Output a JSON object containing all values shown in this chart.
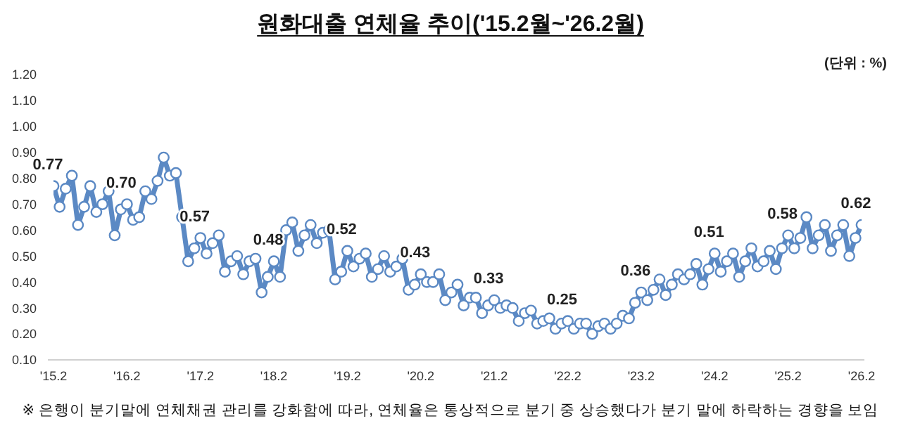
{
  "chart_data": {
    "type": "line",
    "title": "원화대출 연체율 추이('15.2월~'26.2월)",
    "annotations": [
      "(단위 : %)",
      "※ 은행이 분기말에 연체채권 관리를 강화함에 따라, 연체율은 통상적으로 분기 중 상승했다가 분기 말에 하락하는 경향을 보임"
    ],
    "categories": [
      "'15.2",
      null,
      null,
      null,
      null,
      null,
      null,
      null,
      null,
      null,
      null,
      null,
      "'16.2",
      null,
      null,
      null,
      null,
      null,
      null,
      null,
      null,
      null,
      null,
      null,
      "'17.2",
      null,
      null,
      null,
      null,
      null,
      null,
      null,
      null,
      null,
      null,
      null,
      "'18.2",
      null,
      null,
      null,
      null,
      null,
      null,
      null,
      null,
      null,
      null,
      null,
      "'19.2",
      null,
      null,
      null,
      null,
      null,
      null,
      null,
      null,
      null,
      null,
      null,
      "'20.2",
      null,
      null,
      null,
      null,
      null,
      null,
      null,
      null,
      null,
      null,
      null,
      "'21.2",
      null,
      null,
      null,
      null,
      null,
      null,
      null,
      null,
      null,
      null,
      null,
      "'22.2",
      null,
      null,
      null,
      null,
      null,
      null,
      null,
      null,
      null,
      null,
      null,
      "'23.2",
      null,
      null,
      null,
      null,
      null,
      null,
      null,
      null,
      null,
      null,
      null,
      "'24.2",
      null,
      null,
      null,
      null,
      null,
      null,
      null,
      null,
      null,
      null,
      null,
      "'25.2",
      null,
      null,
      null,
      null,
      null,
      null,
      null,
      null,
      null,
      null,
      null,
      "'26.2"
    ],
    "series": [
      {
        "color": "#5b89c4",
        "values": [
          0.77,
          0.69,
          0.76,
          0.81,
          0.62,
          0.69,
          0.77,
          0.67,
          0.7,
          0.75,
          0.58,
          0.68,
          0.7,
          0.64,
          0.65,
          0.75,
          0.72,
          0.79,
          0.88,
          0.81,
          0.82,
          0.65,
          0.48,
          0.53,
          0.57,
          0.51,
          0.55,
          0.58,
          0.44,
          0.48,
          0.5,
          0.43,
          0.48,
          0.49,
          0.36,
          0.42,
          0.48,
          0.42,
          0.6,
          0.63,
          0.52,
          0.58,
          0.62,
          0.55,
          0.59,
          0.6,
          0.41,
          0.44,
          0.52,
          0.46,
          0.49,
          0.51,
          0.42,
          0.45,
          0.5,
          0.44,
          0.46,
          0.49,
          0.37,
          0.39,
          0.43,
          0.4,
          0.4,
          0.43,
          0.33,
          0.36,
          0.39,
          0.31,
          0.34,
          0.34,
          0.28,
          0.31,
          0.33,
          0.3,
          0.31,
          0.3,
          0.25,
          0.28,
          0.29,
          0.24,
          0.25,
          0.26,
          0.22,
          0.24,
          0.25,
          0.22,
          0.24,
          0.24,
          0.2,
          0.23,
          0.24,
          0.22,
          0.24,
          0.27,
          0.26,
          0.32,
          0.36,
          0.33,
          0.37,
          0.41,
          0.35,
          0.39,
          0.43,
          0.41,
          0.43,
          0.47,
          0.39,
          0.45,
          0.51,
          0.44,
          0.48,
          0.51,
          0.42,
          0.48,
          0.53,
          0.46,
          0.48,
          0.52,
          0.45,
          0.53,
          0.58,
          0.53,
          0.57,
          0.65,
          0.53,
          0.58,
          0.62,
          0.52,
          0.58,
          0.62,
          0.5,
          0.57,
          0.62
        ],
        "value_labels": [
          "0.77",
          null,
          null,
          null,
          null,
          null,
          null,
          null,
          null,
          null,
          null,
          null,
          "0.70",
          null,
          null,
          null,
          null,
          null,
          null,
          null,
          null,
          null,
          null,
          null,
          "0.57",
          null,
          null,
          null,
          null,
          null,
          null,
          null,
          null,
          null,
          null,
          null,
          "0.48",
          null,
          null,
          null,
          null,
          null,
          null,
          null,
          null,
          null,
          null,
          null,
          "0.52",
          null,
          null,
          null,
          null,
          null,
          null,
          null,
          null,
          null,
          null,
          null,
          "0.43",
          null,
          null,
          null,
          null,
          null,
          null,
          null,
          null,
          null,
          null,
          null,
          "0.33",
          null,
          null,
          null,
          null,
          null,
          null,
          null,
          null,
          null,
          null,
          null,
          "0.25",
          null,
          null,
          null,
          null,
          null,
          null,
          null,
          null,
          null,
          null,
          null,
          "0.36",
          null,
          null,
          null,
          null,
          null,
          null,
          null,
          null,
          null,
          null,
          null,
          "0.51",
          null,
          null,
          null,
          null,
          null,
          null,
          null,
          null,
          null,
          null,
          null,
          "0.58",
          null,
          null,
          null,
          null,
          null,
          null,
          null,
          null,
          null,
          null,
          null,
          "0.62"
        ]
      }
    ],
    "ylim": [
      0.1,
      1.2
    ],
    "yticks": [
      {
        "value": 0.1,
        "label": "0.10"
      },
      {
        "value": 0.2,
        "label": "0.20"
      },
      {
        "value": 0.3,
        "label": "0.30"
      },
      {
        "value": 0.4,
        "label": "0.40"
      },
      {
        "value": 0.5,
        "label": "0.50"
      },
      {
        "value": 0.6,
        "label": "0.60"
      },
      {
        "value": 0.7,
        "label": "0.70"
      },
      {
        "value": 0.8,
        "label": "0.80"
      },
      {
        "value": 0.9,
        "label": "0.90"
      },
      {
        "value": 1.0,
        "label": "1.00"
      },
      {
        "value": 1.1,
        "label": "1.10"
      },
      {
        "value": 1.2,
        "label": "1.20"
      }
    ],
    "grid": false,
    "legend": false,
    "marker": "circle",
    "line_style": "solid"
  }
}
